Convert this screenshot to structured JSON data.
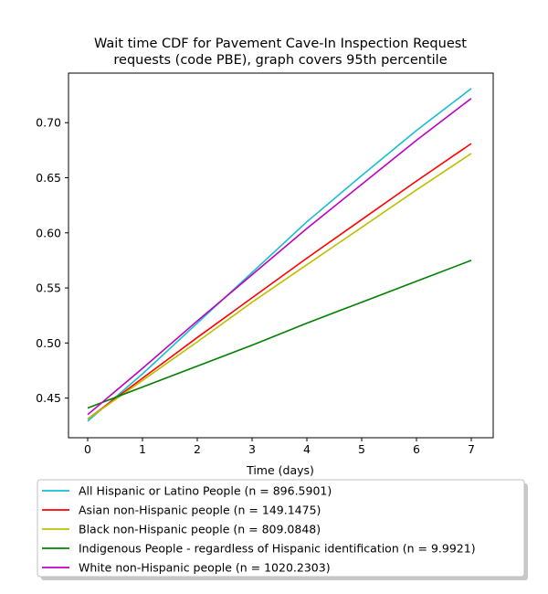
{
  "chart_data": {
    "type": "line",
    "title_lines": [
      "Wait time CDF for Pavement Cave-In Inspection Request",
      "requests (code PBE), graph covers 95th percentile"
    ],
    "xlabel": "Time (days)",
    "ylabel": "",
    "xlim": [
      -0.35,
      7.4
    ],
    "ylim": [
      0.414,
      0.745
    ],
    "xticks": [
      0,
      1,
      2,
      3,
      4,
      5,
      6,
      7
    ],
    "yticks": [
      0.45,
      0.5,
      0.55,
      0.6,
      0.65,
      0.7
    ],
    "ytick_labels": [
      "0.45",
      "0.50",
      "0.55",
      "0.60",
      "0.65",
      "0.70"
    ],
    "grid": false,
    "legend_placement": "below",
    "series": [
      {
        "name": "All Hispanic or Latino People (n = 896.5901)",
        "color": "#17becf",
        "x": [
          0,
          1,
          2,
          3,
          4,
          5,
          6,
          7
        ],
        "y": [
          0.429,
          0.472,
          0.518,
          0.564,
          0.61,
          0.652,
          0.693,
          0.731
        ]
      },
      {
        "name": "Asian non-Hispanic people (n = 149.1475)",
        "color": "#ff0000",
        "x": [
          0,
          1,
          2,
          3,
          4,
          5,
          6,
          7
        ],
        "y": [
          0.431,
          0.468,
          0.505,
          0.541,
          0.577,
          0.612,
          0.647,
          0.681
        ]
      },
      {
        "name": "Black non-Hispanic people (n = 809.0848)",
        "color": "#bfbf00",
        "x": [
          0,
          1,
          2,
          3,
          4,
          5,
          6,
          7
        ],
        "y": [
          0.431,
          0.466,
          0.501,
          0.537,
          0.571,
          0.605,
          0.639,
          0.672
        ]
      },
      {
        "name": "Indigenous People - regardless of Hispanic identification (n = 9.9921)",
        "color": "#008000",
        "x": [
          0,
          1,
          2,
          3,
          4,
          5,
          6,
          7
        ],
        "y": [
          0.441,
          0.46,
          0.479,
          0.498,
          0.518,
          0.537,
          0.556,
          0.575
        ]
      },
      {
        "name": "White non-Hispanic people (n = 1020.2303)",
        "color": "#bf00bf",
        "x": [
          0,
          1,
          2,
          3,
          4,
          5,
          6,
          7
        ],
        "y": [
          0.435,
          0.477,
          0.52,
          0.562,
          0.604,
          0.644,
          0.684,
          0.722
        ]
      }
    ]
  }
}
